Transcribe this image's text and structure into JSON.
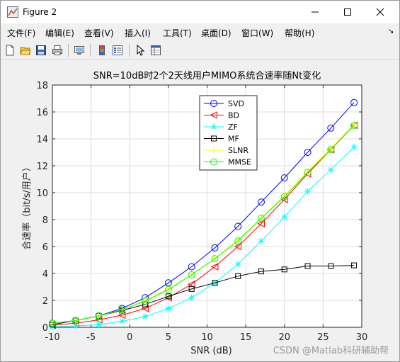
{
  "window": {
    "title": "Figure 2",
    "icon": "matlab-figure-icon",
    "controls": [
      "minimize-icon",
      "maximize-icon",
      "close-icon"
    ]
  },
  "menu": {
    "items": [
      "文件(F)",
      "编辑(E)",
      "查看(V)",
      "插入(I)",
      "工具(T)",
      "桌面(D)",
      "窗口(W)",
      "帮助(H)"
    ],
    "overflow": "↘"
  },
  "toolbar": {
    "icons": [
      "new-figure-icon",
      "open-file-icon",
      "save-icon",
      "print-icon",
      "link-plot-icon",
      "insert-colorbar-icon",
      "insert-legend-icon",
      "pointer-icon",
      "property-inspector-icon"
    ]
  },
  "watermark": "CSDN @Matlab科研辅助帮",
  "colors": {
    "SVD": "#0000ff",
    "BD": "#ff0000",
    "ZF": "#00ffff",
    "MF": "#000000",
    "SLNR": "#ffff00",
    "MMSE": "#00ff00"
  },
  "chart_data": {
    "type": "line",
    "title": "SNR=10dB时2个2天线用户MIMO系统合速率随Nt变化",
    "xlabel": "SNR (dB)",
    "ylabel": "合速率（bit/s/用户）",
    "xlim": [
      -10,
      30
    ],
    "ylim": [
      0,
      18
    ],
    "xticks": [
      -10,
      -5,
      0,
      5,
      10,
      15,
      20,
      25,
      30
    ],
    "yticks": [
      0,
      2,
      4,
      6,
      8,
      10,
      12,
      14,
      16,
      18
    ],
    "grid": true,
    "legend_position": "top-right-inside",
    "x": [
      -10,
      -7,
      -4,
      -1,
      2,
      5,
      8,
      11,
      14,
      17,
      20,
      23,
      26,
      29
    ],
    "series": [
      {
        "name": "SVD",
        "marker": "circle",
        "values": [
          0.3,
          0.5,
          0.85,
          1.4,
          2.2,
          3.3,
          4.5,
          5.9,
          7.5,
          9.3,
          11.1,
          13.0,
          14.8,
          16.7
        ]
      },
      {
        "name": "BD",
        "marker": "triangle-left",
        "values": [
          0.15,
          0.3,
          0.55,
          0.9,
          1.4,
          2.2,
          3.2,
          4.5,
          6.0,
          7.7,
          9.5,
          11.4,
          13.2,
          15.0
        ]
      },
      {
        "name": "ZF",
        "marker": "star",
        "values": [
          0.05,
          0.1,
          0.2,
          0.45,
          0.8,
          1.4,
          2.2,
          3.3,
          4.7,
          6.4,
          8.2,
          10.1,
          11.7,
          13.4
        ]
      },
      {
        "name": "MF",
        "marker": "square",
        "values": [
          0.2,
          0.5,
          0.85,
          1.25,
          1.7,
          2.3,
          2.85,
          3.3,
          3.8,
          4.15,
          4.3,
          4.55,
          4.55,
          4.6
        ]
      },
      {
        "name": "SLNR",
        "marker": "plus",
        "values": [
          0.3,
          0.5,
          0.85,
          1.3,
          2.0,
          2.85,
          3.9,
          5.1,
          6.5,
          8.1,
          9.8,
          11.6,
          13.3,
          15.1
        ]
      },
      {
        "name": "MMSE",
        "marker": "circle",
        "values": [
          0.3,
          0.5,
          0.85,
          1.3,
          1.95,
          2.8,
          3.9,
          5.1,
          6.4,
          8.1,
          9.7,
          11.5,
          13.2,
          15.0
        ]
      }
    ]
  }
}
